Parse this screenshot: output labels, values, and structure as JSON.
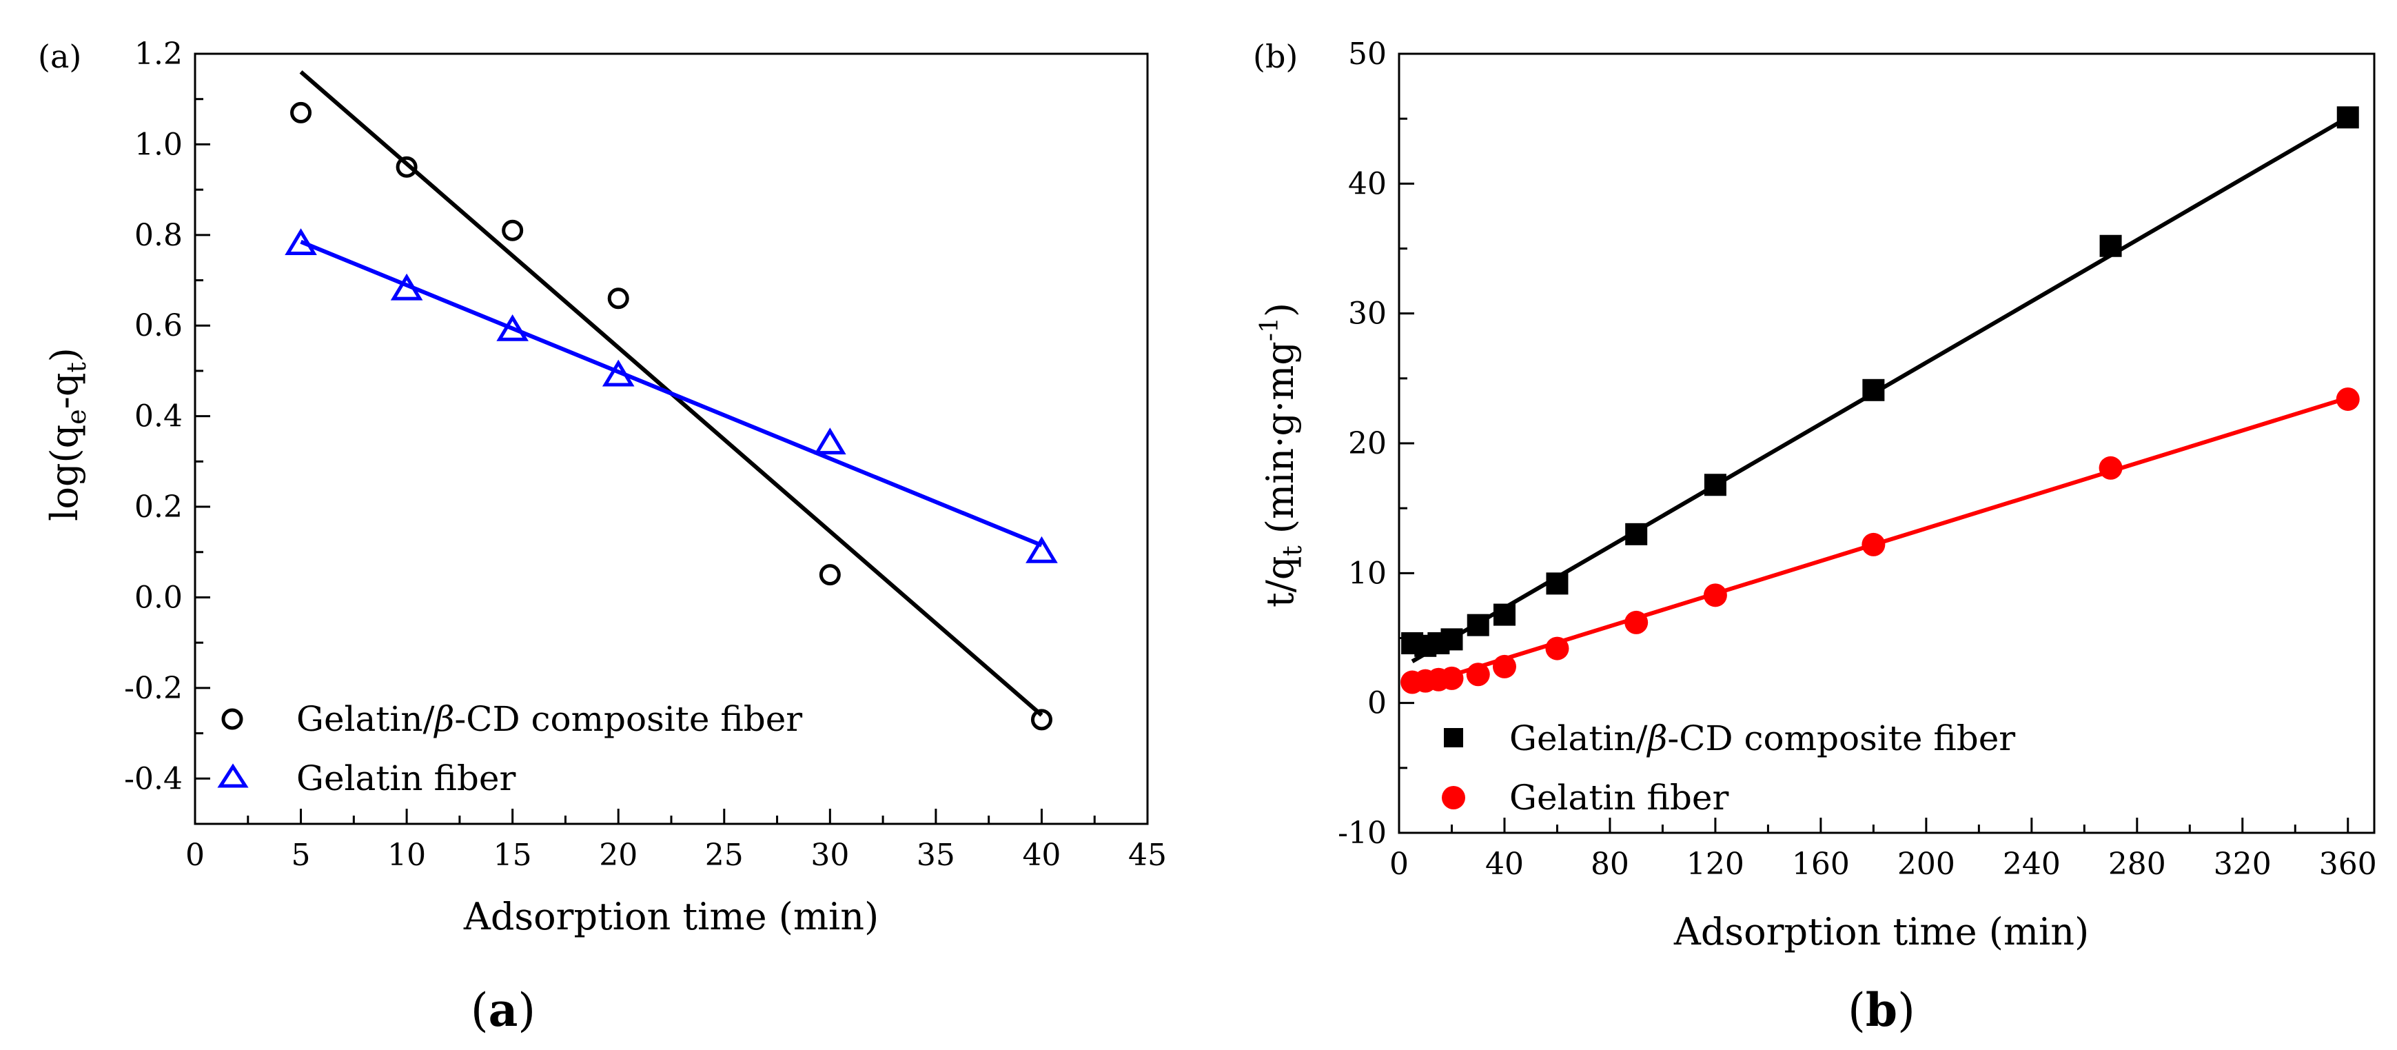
{
  "figure": {
    "captions": [
      {
        "open": "(",
        "letter": "a",
        "close": ")"
      },
      {
        "open": "(",
        "letter": "b",
        "close": ")"
      }
    ]
  },
  "chart_data": [
    {
      "type": "scatter",
      "panel_label": "(a)",
      "xlabel": "Adsorption time (min)",
      "ylabel": {
        "prefix": "log(q",
        "sub1": "e",
        "mid": "-q",
        "sub2": "t",
        "suffix": ")"
      },
      "xlim": [
        0,
        45
      ],
      "ylim": [
        -0.5,
        1.2
      ],
      "xticks": [
        0,
        5,
        10,
        15,
        20,
        25,
        30,
        35,
        40,
        45
      ],
      "yticks": [
        -0.4,
        -0.2,
        0.0,
        0.2,
        0.4,
        0.6,
        0.8,
        1.0,
        1.2
      ],
      "ytick_labels": [
        "-0.4",
        "-0.2",
        "0.0",
        "0.2",
        "0.4",
        "0.6",
        "0.8",
        "1.0",
        "1.2"
      ],
      "legend_position": "bottom-left",
      "series": [
        {
          "name": "Gelatin/β-CD composite fiber",
          "name_parts": {
            "before": "Gelatin/",
            "italic": "β",
            "after": "-CD composite fiber"
          },
          "marker": "open-circle",
          "color": "#000000",
          "x": [
            5,
            10,
            15,
            20,
            30,
            40
          ],
          "y": [
            1.07,
            0.95,
            0.81,
            0.66,
            0.05,
            -0.27
          ],
          "fit": {
            "x": [
              5,
              40
            ],
            "y": [
              1.16,
              -0.26
            ]
          }
        },
        {
          "name": "Gelatin fiber",
          "name_parts": {
            "before": "Gelatin fiber",
            "italic": "",
            "after": ""
          },
          "marker": "open-triangle",
          "color": "#0000ff",
          "x": [
            5,
            10,
            15,
            20,
            30,
            40
          ],
          "y": [
            0.78,
            0.68,
            0.59,
            0.49,
            0.34,
            0.1
          ],
          "fit": {
            "x": [
              5,
              40
            ],
            "y": [
              0.785,
              0.115
            ]
          }
        }
      ]
    },
    {
      "type": "scatter",
      "panel_label": "(b)",
      "xlabel": "Adsorption time (min)",
      "ylabel": {
        "prefix": "t/q",
        "sub": "t",
        "mid": " (min·g·mg",
        "sup": "-1",
        "suffix": ")"
      },
      "xlim": [
        0,
        370
      ],
      "ylim": [
        -10,
        50
      ],
      "xticks": [
        0,
        40,
        80,
        120,
        160,
        200,
        240,
        280,
        320,
        360
      ],
      "yticks": [
        -10,
        0,
        10,
        20,
        30,
        40,
        50
      ],
      "legend_position": "bottom-left",
      "series": [
        {
          "name": "Gelatin/β-CD composite fiber",
          "name_parts": {
            "before": "Gelatin/",
            "italic": "β",
            "after": "-CD composite fiber"
          },
          "marker": "filled-square",
          "color": "#000000",
          "x": [
            5,
            10,
            15,
            20,
            30,
            40,
            60,
            90,
            120,
            180,
            270,
            360
          ],
          "y": [
            4.6,
            4.4,
            4.6,
            4.9,
            6.0,
            6.8,
            9.2,
            13.0,
            16.8,
            24.1,
            35.2,
            45.1
          ],
          "fit": {
            "x": [
              5,
              360
            ],
            "y": [
              3.2,
              45.1
            ]
          }
        },
        {
          "name": "Gelatin fiber",
          "name_parts": {
            "before": "Gelatin fiber",
            "italic": "",
            "after": ""
          },
          "marker": "filled-circle",
          "color": "#ff0000",
          "x": [
            5,
            10,
            15,
            20,
            30,
            40,
            60,
            90,
            120,
            180,
            270,
            360
          ],
          "y": [
            1.6,
            1.7,
            1.8,
            1.9,
            2.2,
            2.8,
            4.2,
            6.2,
            8.3,
            12.2,
            18.1,
            23.4
          ],
          "fit": {
            "x": [
              5,
              360
            ],
            "y": [
              1.2,
              23.5
            ]
          }
        }
      ]
    }
  ]
}
